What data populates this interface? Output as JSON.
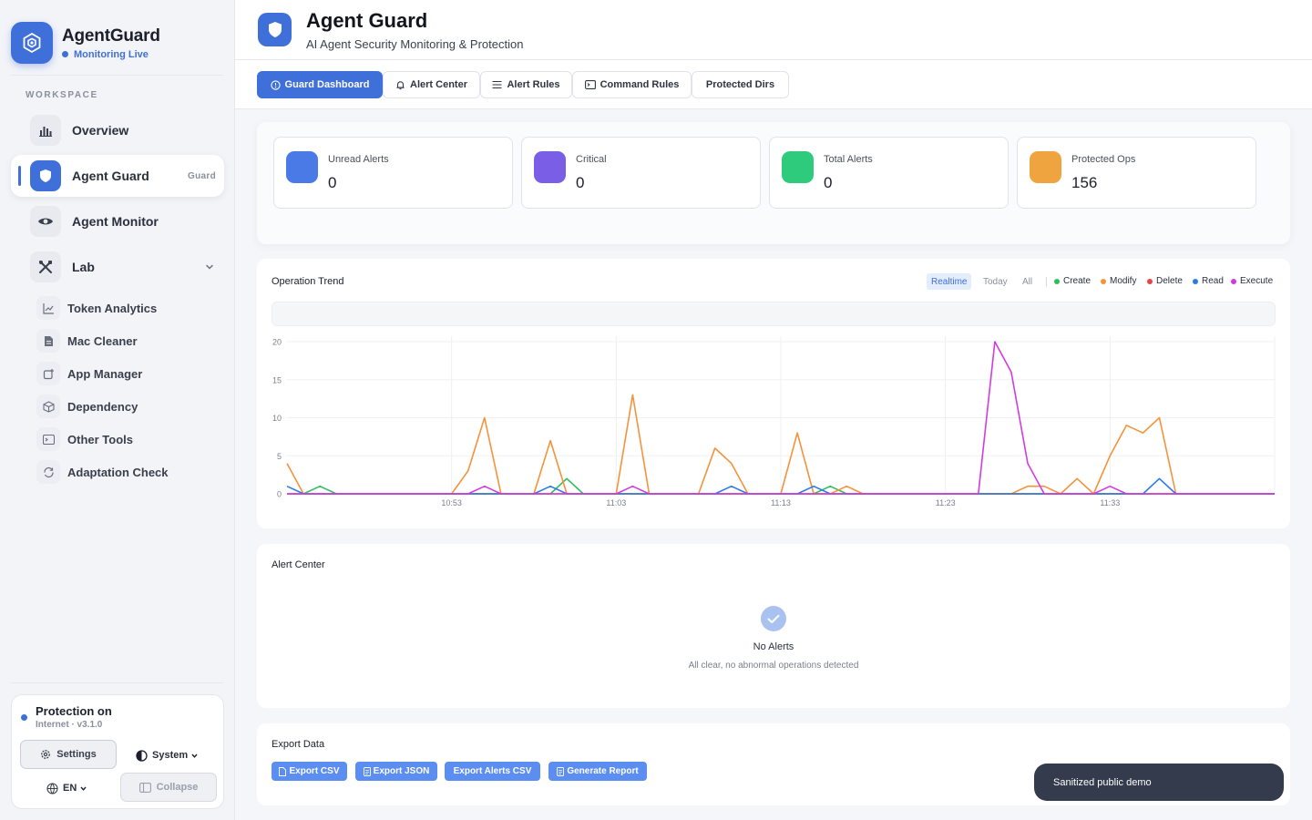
{
  "app": {
    "name": "AgentGuard",
    "status": "Monitoring Live"
  },
  "sidebar": {
    "section_label": "WORKSPACE",
    "items": [
      {
        "label": "Overview",
        "icon": "bar-chart-icon"
      },
      {
        "label": "Agent Guard",
        "icon": "shield-icon",
        "badge": "Guard",
        "active": true
      },
      {
        "label": "Agent Monitor",
        "icon": "eye-icon"
      },
      {
        "label": "Lab",
        "icon": "tools-icon",
        "expanded": true
      }
    ],
    "sub_items": [
      {
        "label": "Token Analytics",
        "icon": "line-chart-icon"
      },
      {
        "label": "Mac Cleaner",
        "icon": "file-icon"
      },
      {
        "label": "App Manager",
        "icon": "app-icon"
      },
      {
        "label": "Dependency",
        "icon": "package-icon"
      },
      {
        "label": "Other Tools",
        "icon": "terminal-icon"
      },
      {
        "label": "Adaptation Check",
        "icon": "refresh-icon"
      }
    ],
    "footer": {
      "protection_title": "Protection on",
      "protection_sub": "Internet · v3.1.0",
      "settings_label": "Settings",
      "theme_label": "System",
      "lang_label": "EN",
      "collapse_label": "Collapse"
    }
  },
  "header": {
    "title": "Agent Guard",
    "subtitle": "AI Agent Security Monitoring & Protection"
  },
  "tabs": [
    {
      "label": "Guard Dashboard",
      "icon": "dashboard-icon",
      "active": true
    },
    {
      "label": "Alert Center",
      "icon": "bell-icon"
    },
    {
      "label": "Alert Rules",
      "icon": "list-icon"
    },
    {
      "label": "Command Rules",
      "icon": "terminal-icon"
    },
    {
      "label": "Protected Dirs",
      "icon": ""
    }
  ],
  "stats": [
    {
      "label": "Unread Alerts",
      "value": "0",
      "color": "#4a7ae6"
    },
    {
      "label": "Critical",
      "value": "0",
      "color": "#7a5fe6"
    },
    {
      "label": "Total Alerts",
      "value": "0",
      "color": "#2fcb7c"
    },
    {
      "label": "Protected Ops",
      "value": "156",
      "color": "#f0a440"
    }
  ],
  "trend": {
    "title": "Operation Trend",
    "ranges": [
      "Realtime",
      "Today",
      "All"
    ],
    "active_range": "Realtime"
  },
  "chart_data": {
    "type": "line",
    "title": "Operation Trend",
    "x_ticks": [
      "10:53",
      "11:03",
      "11:13",
      "11:23",
      "11:33"
    ],
    "x_tick_index": [
      10,
      20,
      30,
      40,
      50
    ],
    "y_ticks": [
      0,
      5,
      10,
      15,
      20
    ],
    "ylim": [
      0,
      20
    ],
    "n_points": 61,
    "grid": true,
    "legend_position": "top-right",
    "series": [
      {
        "name": "Create",
        "color": "#2fbf5a",
        "values": [
          0,
          0,
          1,
          0,
          0,
          0,
          0,
          0,
          0,
          0,
          0,
          0,
          0,
          0,
          0,
          0,
          0,
          2,
          0,
          0,
          0,
          0,
          0,
          0,
          0,
          0,
          0,
          0,
          0,
          0,
          0,
          0,
          0,
          1,
          0,
          0,
          0,
          0,
          0,
          0,
          0,
          0,
          0,
          0,
          0,
          0,
          0,
          0,
          0,
          0,
          0,
          0,
          0,
          0,
          0,
          0,
          0,
          0,
          0,
          0,
          0
        ]
      },
      {
        "name": "Modify",
        "color": "#f5923a",
        "values": [
          4,
          0,
          0,
          0,
          0,
          0,
          0,
          0,
          0,
          0,
          0,
          3,
          10,
          0,
          0,
          0,
          7,
          0,
          0,
          0,
          0,
          13,
          0,
          0,
          0,
          0,
          6,
          4,
          0,
          0,
          0,
          8,
          0,
          0,
          1,
          0,
          0,
          0,
          0,
          0,
          0,
          0,
          0,
          0,
          0,
          1,
          1,
          0,
          2,
          0,
          5,
          9,
          8,
          10,
          0,
          0,
          0,
          0,
          0,
          0,
          0
        ]
      },
      {
        "name": "Delete",
        "color": "#e84545",
        "values": [
          0,
          0,
          0,
          0,
          0,
          0,
          0,
          0,
          0,
          0,
          0,
          0,
          0,
          0,
          0,
          0,
          0,
          0,
          0,
          0,
          0,
          0,
          0,
          0,
          0,
          0,
          0,
          0,
          0,
          0,
          0,
          0,
          0,
          0,
          0,
          0,
          0,
          0,
          0,
          0,
          0,
          0,
          0,
          0,
          0,
          0,
          0,
          0,
          0,
          0,
          0,
          0,
          0,
          0,
          0,
          0,
          0,
          0,
          0,
          0,
          0
        ]
      },
      {
        "name": "Read",
        "color": "#2c7be5",
        "values": [
          1,
          0,
          0,
          0,
          0,
          0,
          0,
          0,
          0,
          0,
          0,
          0,
          0,
          0,
          0,
          0,
          1,
          0,
          0,
          0,
          0,
          0,
          0,
          0,
          0,
          0,
          0,
          1,
          0,
          0,
          0,
          0,
          1,
          0,
          0,
          0,
          0,
          0,
          0,
          0,
          0,
          0,
          0,
          0,
          0,
          0,
          0,
          0,
          0,
          0,
          0,
          0,
          0,
          2,
          0,
          0,
          0,
          0,
          0,
          0,
          0
        ]
      },
      {
        "name": "Execute",
        "color": "#d23be0",
        "values": [
          0,
          0,
          0,
          0,
          0,
          0,
          0,
          0,
          0,
          0,
          0,
          0,
          1,
          0,
          0,
          0,
          0,
          0,
          0,
          0,
          0,
          1,
          0,
          0,
          0,
          0,
          0,
          0,
          0,
          0,
          0,
          0,
          0,
          0,
          0,
          0,
          0,
          0,
          0,
          0,
          0,
          0,
          0,
          20,
          16,
          4,
          0,
          0,
          0,
          0,
          1,
          0,
          0,
          0,
          0,
          0,
          0,
          0,
          0,
          0,
          0
        ]
      }
    ]
  },
  "alerts": {
    "title": "Alert Center",
    "empty_title": "No Alerts",
    "empty_sub": "All clear, no abnormal operations detected"
  },
  "export": {
    "title": "Export Data",
    "buttons": [
      "Export CSV",
      "Export JSON",
      "Export Alerts CSV",
      "Generate Report"
    ]
  },
  "toast": "Sanitized public demo",
  "colors": {
    "accent": "#3f6fd8",
    "toast_bg": "#343b4d"
  }
}
